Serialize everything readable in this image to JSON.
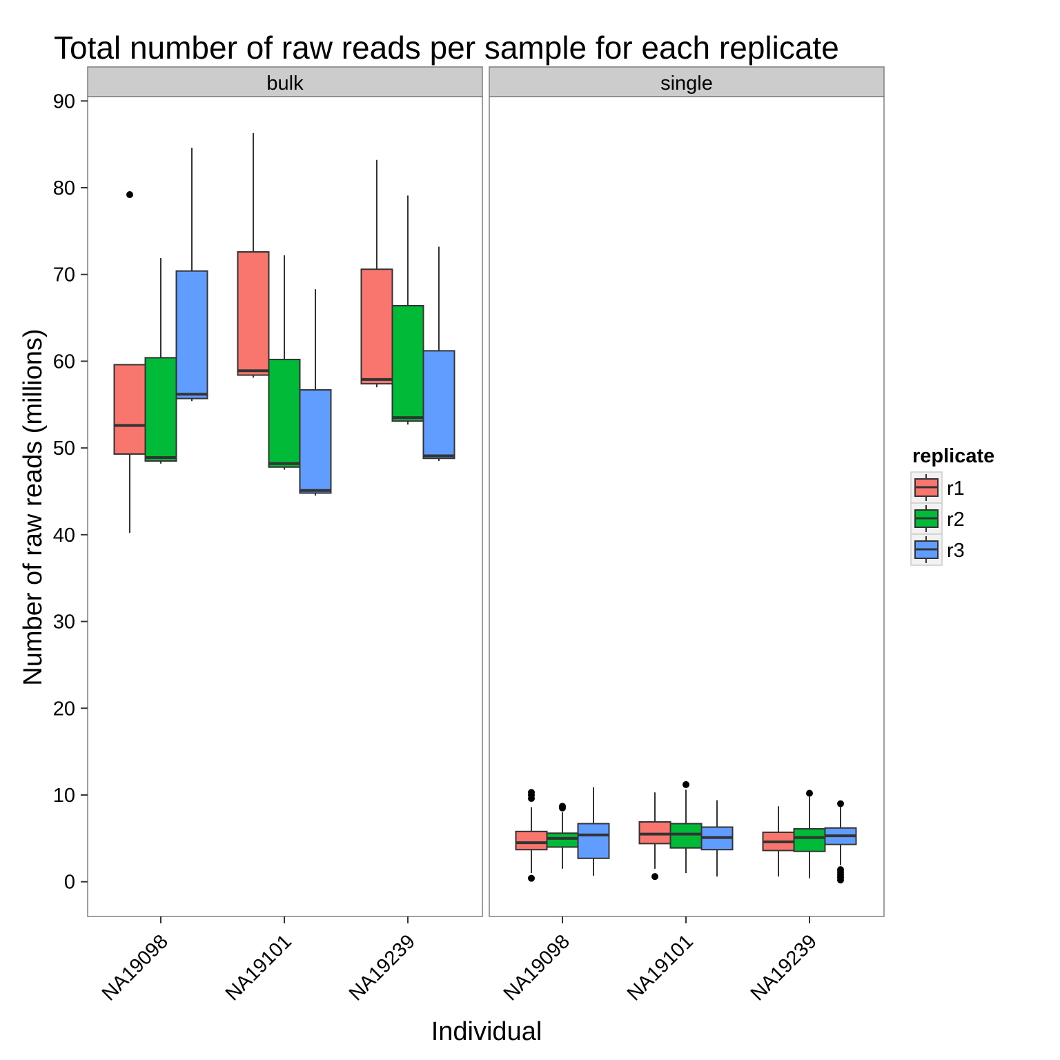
{
  "chart_data": {
    "type": "box",
    "title": "Total number of raw reads per sample for each replicate",
    "xlabel": "Individual",
    "ylabel": "Number of raw reads (millions)",
    "ylim": [
      -4,
      90.5
    ],
    "yticks": [
      0,
      10,
      20,
      30,
      40,
      50,
      60,
      70,
      80,
      90
    ],
    "categories": [
      "NA19098",
      "NA19101",
      "NA19239"
    ],
    "legend": {
      "title": "replicate",
      "position": "right",
      "items": [
        {
          "label": "r1",
          "color": "#F8766D"
        },
        {
          "label": "r2",
          "color": "#00BA38"
        },
        {
          "label": "r3",
          "color": "#619CFF"
        }
      ]
    },
    "facets": [
      {
        "name": "bulk",
        "groups": [
          {
            "individual": "NA19098",
            "replicate": "r1",
            "min": 40.2,
            "q1": 49.3,
            "median": 52.6,
            "q3": 59.6,
            "max": 59.6,
            "outliers": [
              79.2
            ]
          },
          {
            "individual": "NA19098",
            "replicate": "r2",
            "min": 48.2,
            "q1": 48.5,
            "median": 48.9,
            "q3": 60.4,
            "max": 71.9,
            "outliers": []
          },
          {
            "individual": "NA19098",
            "replicate": "r3",
            "min": 55.4,
            "q1": 55.7,
            "median": 56.2,
            "q3": 70.4,
            "max": 84.6,
            "outliers": []
          },
          {
            "individual": "NA19101",
            "replicate": "r1",
            "min": 58.1,
            "q1": 58.4,
            "median": 58.9,
            "q3": 72.6,
            "max": 86.3,
            "outliers": []
          },
          {
            "individual": "NA19101",
            "replicate": "r2",
            "min": 47.5,
            "q1": 47.8,
            "median": 48.2,
            "q3": 60.2,
            "max": 72.2,
            "outliers": []
          },
          {
            "individual": "NA19101",
            "replicate": "r3",
            "min": 44.5,
            "q1": 44.8,
            "median": 45.1,
            "q3": 56.7,
            "max": 68.3,
            "outliers": []
          },
          {
            "individual": "NA19239",
            "replicate": "r1",
            "min": 57.0,
            "q1": 57.4,
            "median": 57.9,
            "q3": 70.6,
            "max": 83.2,
            "outliers": []
          },
          {
            "individual": "NA19239",
            "replicate": "r2",
            "min": 52.7,
            "q1": 53.1,
            "median": 53.5,
            "q3": 66.4,
            "max": 79.1,
            "outliers": []
          },
          {
            "individual": "NA19239",
            "replicate": "r3",
            "min": 48.5,
            "q1": 48.8,
            "median": 49.1,
            "q3": 61.2,
            "max": 73.2,
            "outliers": []
          }
        ]
      },
      {
        "name": "single",
        "groups": [
          {
            "individual": "NA19098",
            "replicate": "r1",
            "min": 1.0,
            "q1": 3.7,
            "median": 4.5,
            "q3": 5.8,
            "max": 8.6,
            "outliers": [
              0.4,
              9.6,
              10.0,
              10.3
            ]
          },
          {
            "individual": "NA19098",
            "replicate": "r2",
            "min": 1.5,
            "q1": 4.0,
            "median": 5.0,
            "q3": 5.6,
            "max": 8.0,
            "outliers": [
              8.5,
              8.7
            ]
          },
          {
            "individual": "NA19098",
            "replicate": "r3",
            "min": 0.7,
            "q1": 2.7,
            "median": 5.4,
            "q3": 6.7,
            "max": 10.9,
            "outliers": []
          },
          {
            "individual": "NA19101",
            "replicate": "r1",
            "min": 1.5,
            "q1": 4.4,
            "median": 5.5,
            "q3": 6.9,
            "max": 10.3,
            "outliers": [
              0.6
            ]
          },
          {
            "individual": "NA19101",
            "replicate": "r2",
            "min": 1.0,
            "q1": 3.9,
            "median": 5.5,
            "q3": 6.7,
            "max": 10.6,
            "outliers": [
              11.2
            ]
          },
          {
            "individual": "NA19101",
            "replicate": "r3",
            "min": 0.6,
            "q1": 3.7,
            "median": 5.1,
            "q3": 6.3,
            "max": 9.4,
            "outliers": []
          },
          {
            "individual": "NA19239",
            "replicate": "r1",
            "min": 0.6,
            "q1": 3.6,
            "median": 4.6,
            "q3": 5.7,
            "max": 8.7,
            "outliers": []
          },
          {
            "individual": "NA19239",
            "replicate": "r2",
            "min": 0.4,
            "q1": 3.5,
            "median": 5.1,
            "q3": 6.1,
            "max": 9.8,
            "outliers": [
              10.2
            ]
          },
          {
            "individual": "NA19239",
            "replicate": "r3",
            "min": 1.9,
            "q1": 4.3,
            "median": 5.3,
            "q3": 6.2,
            "max": 8.6,
            "outliers": [
              0.2,
              0.5,
              0.8,
              1.1,
              1.4,
              9.0
            ]
          }
        ]
      }
    ]
  }
}
